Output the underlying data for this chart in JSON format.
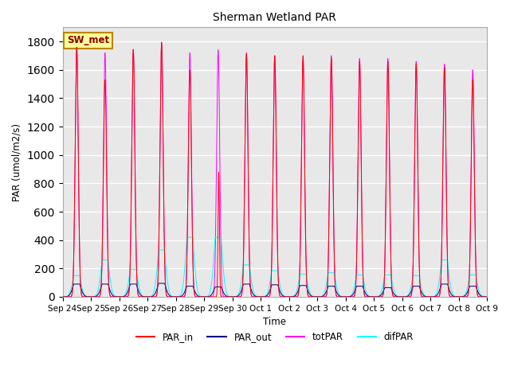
{
  "title": "Sherman Wetland PAR",
  "ylabel": "PAR (umol/m2/s)",
  "xlabel": "Time",
  "legend_label": "SW_met",
  "colors": {
    "PAR_in": "#ff0000",
    "PAR_out": "#00008b",
    "totPAR": "#ff00ff",
    "difPAR": "#00ffff"
  },
  "ylim": [
    0,
    1900
  ],
  "yticks": [
    0,
    200,
    400,
    600,
    800,
    1000,
    1200,
    1400,
    1600,
    1800
  ],
  "date_labels": [
    "Sep 24",
    "Sep 25",
    "Sep 26",
    "Sep 27",
    "Sep 28",
    "Sep 29",
    "Sep 30",
    "Oct 1",
    "Oct 2",
    "Oct 3",
    "Oct 4",
    "Oct 5",
    "Oct 6",
    "Oct 7",
    "Oct 8",
    "Oct 9"
  ],
  "num_days": 15,
  "plot_bg_color": "#e8e8e8",
  "grid_color": "#ffffff",
  "totPAR_peaks": [
    1750,
    1720,
    1740,
    1780,
    1720,
    1740,
    1720,
    1700,
    1680,
    1700,
    1680,
    1680,
    1660,
    1640,
    1600
  ],
  "PAR_in_peaks": [
    1760,
    1530,
    1745,
    1795,
    1600,
    880,
    1710,
    1700,
    1700,
    1680,
    1660,
    1660,
    1640,
    1620,
    1530
  ],
  "difPAR_peaks": [
    150,
    260,
    195,
    330,
    420,
    420,
    225,
    185,
    160,
    170,
    155,
    155,
    150,
    260,
    155
  ],
  "PAR_out_peaks": [
    90,
    90,
    90,
    95,
    75,
    70,
    90,
    85,
    80,
    75,
    75,
    65,
    75,
    90,
    75
  ],
  "figsize": [
    6.4,
    4.8
  ],
  "dpi": 100
}
